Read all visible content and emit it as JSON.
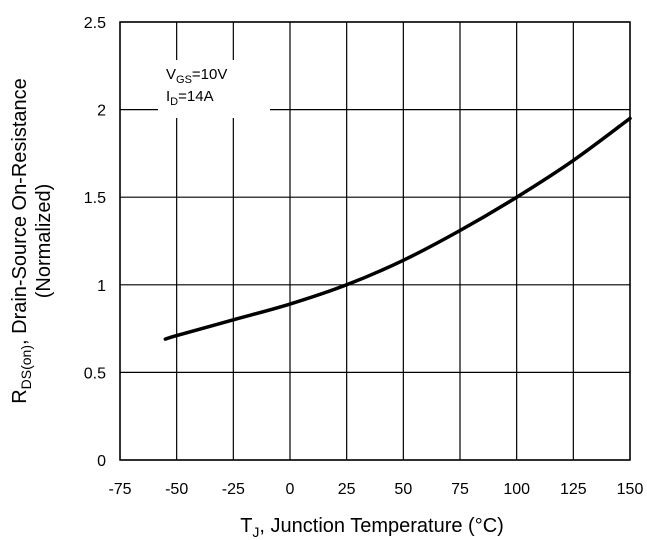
{
  "chart_data": {
    "type": "line",
    "xlabel": {
      "main": "T",
      "sub": "J",
      "rest": ", Junction Temperature (°C)"
    },
    "ylabel": {
      "line1": {
        "main": "R",
        "sub": "DS(on)",
        "rest": ", Drain-Source On-Resistance"
      },
      "line2": "(Normalized)"
    },
    "xlim": [
      -75,
      150
    ],
    "ylim": [
      0,
      2.5
    ],
    "x_ticks": [
      "-75",
      "-50",
      "-25",
      "0",
      "25",
      "50",
      "75",
      "100",
      "125",
      "150"
    ],
    "y_ticks": [
      "0",
      "0.5",
      "1",
      "1.5",
      "2",
      "2.5"
    ],
    "x_tick_values": [
      -75,
      -50,
      -25,
      0,
      25,
      50,
      75,
      100,
      125,
      150
    ],
    "y_tick_values": [
      0,
      0.5,
      1,
      1.5,
      2,
      2.5
    ],
    "grid": true,
    "annotation": {
      "line1": {
        "main": "V",
        "sub": "GS",
        "rest": "=10V"
      },
      "line2": {
        "main": "I",
        "sub": "D",
        "rest": "=14A"
      }
    },
    "series": [
      {
        "x": [
          -55,
          -50,
          -25,
          0,
          25,
          50,
          75,
          100,
          125,
          150
        ],
        "y": [
          0.69,
          0.71,
          0.8,
          0.89,
          1.0,
          1.14,
          1.31,
          1.5,
          1.71,
          1.95
        ]
      }
    ]
  }
}
